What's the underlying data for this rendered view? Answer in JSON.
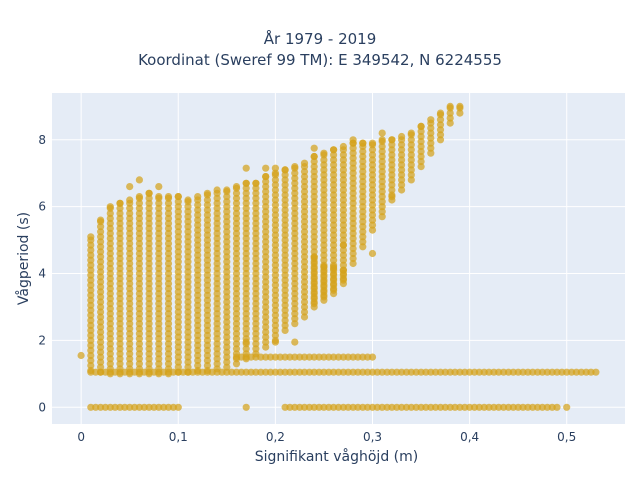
{
  "chart_data": {
    "type": "scatter",
    "title": "År 1979 - 2019",
    "subtitle": "Koordinat (Sweref 99 TM): E 349542, N 6224555",
    "xlabel": "Signifikant våghöjd (m)",
    "ylabel": "Vågperiod (s)",
    "xlim": [
      -0.03,
      0.56
    ],
    "ylim": [
      -0.5,
      9.4
    ],
    "xticks": [
      0,
      0.1,
      0.2,
      0.3,
      0.4,
      0.5
    ],
    "xtick_labels": [
      "0",
      "0,1",
      "0,2",
      "0,3",
      "0,4",
      "0,5"
    ],
    "yticks": [
      0,
      2,
      4,
      6,
      8
    ],
    "ytick_labels": [
      "0",
      "2",
      "4",
      "6",
      "8"
    ],
    "grid": true,
    "colors": {
      "marker": "#d4a21c",
      "plot_bg": "#e5ecf6",
      "grid": "#ffffff"
    },
    "columns": [
      {
        "x": 0.01,
        "ymin": 1.1,
        "ymax": 5.1
      },
      {
        "x": 0.02,
        "ymin": 1.05,
        "ymax": 5.6
      },
      {
        "x": 0.03,
        "ymin": 1.0,
        "ymax": 6.0
      },
      {
        "x": 0.04,
        "ymin": 1.0,
        "ymax": 6.1
      },
      {
        "x": 0.05,
        "ymin": 1.0,
        "ymax": 6.2
      },
      {
        "x": 0.06,
        "ymin": 1.0,
        "ymax": 6.3
      },
      {
        "x": 0.07,
        "ymin": 1.0,
        "ymax": 6.4
      },
      {
        "x": 0.08,
        "ymin": 1.0,
        "ymax": 6.3
      },
      {
        "x": 0.09,
        "ymin": 1.0,
        "ymax": 6.3
      },
      {
        "x": 0.1,
        "ymin": 1.05,
        "ymax": 6.3
      },
      {
        "x": 0.11,
        "ymin": 1.05,
        "ymax": 6.2
      },
      {
        "x": 0.12,
        "ymin": 1.1,
        "ymax": 6.3
      },
      {
        "x": 0.13,
        "ymin": 1.1,
        "ymax": 6.4
      },
      {
        "x": 0.14,
        "ymin": 1.15,
        "ymax": 6.5
      },
      {
        "x": 0.15,
        "ymin": 1.2,
        "ymax": 6.5
      },
      {
        "x": 0.16,
        "ymin": 1.3,
        "ymax": 6.6
      },
      {
        "x": 0.17,
        "ymin": 1.45,
        "ymax": 6.7
      },
      {
        "x": 0.18,
        "ymin": 1.6,
        "ymax": 6.7
      },
      {
        "x": 0.19,
        "ymin": 1.8,
        "ymax": 6.9
      },
      {
        "x": 0.2,
        "ymin": 2.0,
        "ymax": 7.0
      },
      {
        "x": 0.21,
        "ymin": 2.3,
        "ymax": 7.1
      },
      {
        "x": 0.22,
        "ymin": 2.5,
        "ymax": 7.2
      },
      {
        "x": 0.23,
        "ymin": 2.7,
        "ymax": 7.3
      },
      {
        "x": 0.24,
        "ymin": 3.0,
        "ymax": 7.5
      },
      {
        "x": 0.25,
        "ymin": 3.2,
        "ymax": 7.6
      },
      {
        "x": 0.26,
        "ymin": 3.5,
        "ymax": 7.7
      },
      {
        "x": 0.27,
        "ymin": 3.8,
        "ymax": 7.8
      },
      {
        "x": 0.28,
        "ymin": 4.3,
        "ymax": 7.9
      },
      {
        "x": 0.29,
        "ymin": 4.8,
        "ymax": 7.9
      },
      {
        "x": 0.3,
        "ymin": 5.3,
        "ymax": 7.9
      },
      {
        "x": 0.31,
        "ymin": 5.7,
        "ymax": 8.0
      },
      {
        "x": 0.32,
        "ymin": 6.2,
        "ymax": 8.0
      },
      {
        "x": 0.33,
        "ymin": 6.5,
        "ymax": 8.1
      },
      {
        "x": 0.34,
        "ymin": 6.8,
        "ymax": 8.2
      },
      {
        "x": 0.35,
        "ymin": 7.2,
        "ymax": 8.4
      },
      {
        "x": 0.36,
        "ymin": 7.6,
        "ymax": 8.6
      },
      {
        "x": 0.37,
        "ymin": 8.0,
        "ymax": 8.8
      },
      {
        "x": 0.38,
        "ymin": 8.5,
        "ymax": 9.0
      },
      {
        "x": 0.39,
        "ymin": 8.8,
        "ymax": 9.0
      }
    ],
    "lower_columns": [
      {
        "x": 0.24,
        "ymin": 3.1,
        "ymax": 4.5
      },
      {
        "x": 0.25,
        "ymin": 3.3,
        "ymax": 4.2
      },
      {
        "x": 0.26,
        "ymin": 3.4,
        "ymax": 4.2
      },
      {
        "x": 0.27,
        "ymin": 3.7,
        "ymax": 4.1
      }
    ],
    "rows": [
      {
        "y": 1.05,
        "x_from": 0.01,
        "x_to": 0.53
      },
      {
        "y": 1.5,
        "x_from": 0.16,
        "x_to": 0.3
      },
      {
        "y": 0.0,
        "x_from": 0.01,
        "x_to": 0.1
      },
      {
        "y": 0.0,
        "x_from": 0.21,
        "x_to": 0.49
      }
    ],
    "outliers": [
      {
        "x": 0.0,
        "y": 1.55
      },
      {
        "x": 0.17,
        "y": 0.0
      },
      {
        "x": 0.5,
        "y": 0.0
      },
      {
        "x": 0.3,
        "y": 4.6
      },
      {
        "x": 0.27,
        "y": 4.85
      },
      {
        "x": 0.2,
        "y": 1.95
      },
      {
        "x": 0.17,
        "y": 1.95
      },
      {
        "x": 0.22,
        "y": 1.95
      },
      {
        "x": 0.32,
        "y": 6.3
      },
      {
        "x": 0.05,
        "y": 6.6
      },
      {
        "x": 0.06,
        "y": 6.8
      },
      {
        "x": 0.08,
        "y": 6.6
      },
      {
        "x": 0.17,
        "y": 7.15
      },
      {
        "x": 0.19,
        "y": 7.15
      },
      {
        "x": 0.2,
        "y": 7.15
      },
      {
        "x": 0.24,
        "y": 7.75
      },
      {
        "x": 0.28,
        "y": 8.0
      },
      {
        "x": 0.31,
        "y": 8.2
      },
      {
        "x": 0.29,
        "y": 7.9
      }
    ]
  }
}
